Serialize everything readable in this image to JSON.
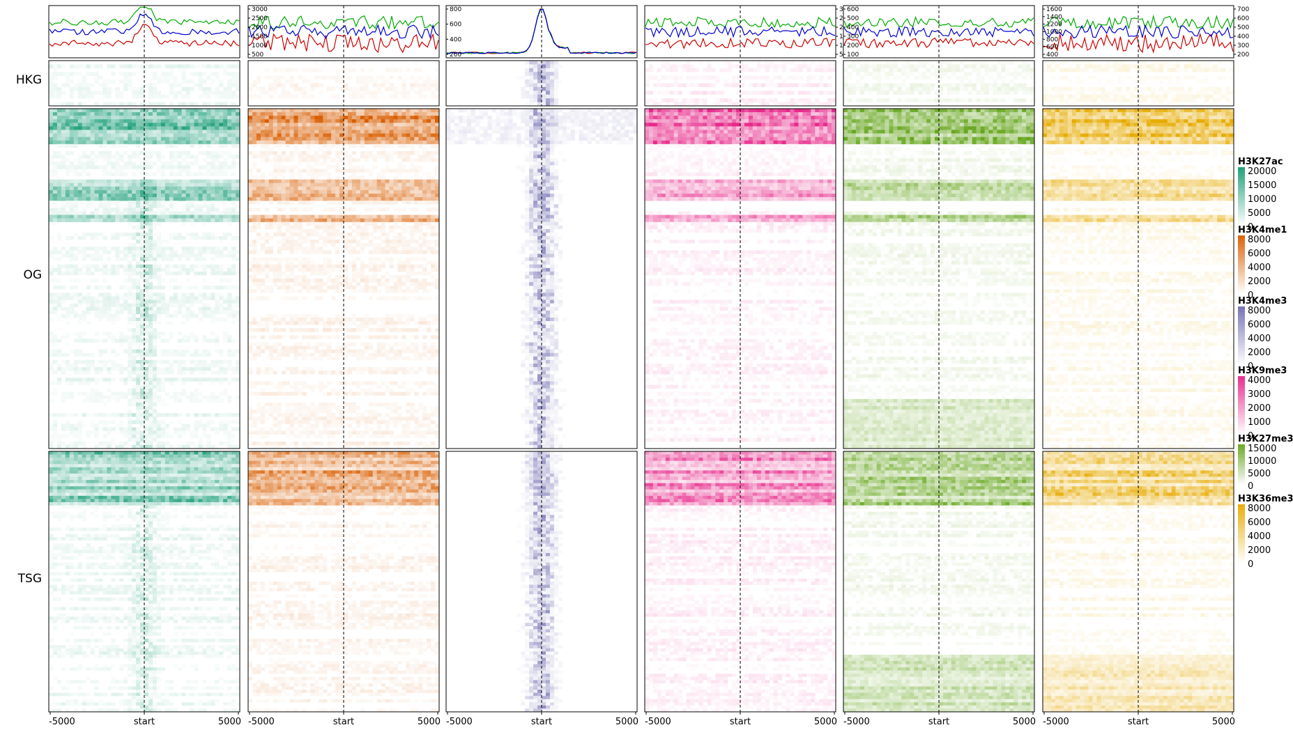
{
  "chart_data": {
    "type": "heatmap",
    "row_groups": [
      "HKG",
      "OG",
      "TSG"
    ],
    "x_tick_labels": [
      "-5000",
      "start",
      "5000"
    ],
    "profile_line_colors": {
      "HKG": "#cc0000",
      "OG": "#00aa00",
      "TSG": "#0000cc"
    },
    "marks": [
      {
        "name": "H3K27ac",
        "color": "#1b9e77",
        "legend_ticks": [
          "20000",
          "15000",
          "10000",
          "5000",
          "0"
        ],
        "profile_ticks": [],
        "profile_ticks_side": "right",
        "profile_shape": "peak-broad"
      },
      {
        "name": "H3K4me1",
        "color": "#d95f02",
        "legend_ticks": [
          "8000",
          "6000",
          "4000",
          "2000",
          "0"
        ],
        "profile_ticks": [
          "3000",
          "2500",
          "2000",
          "1500",
          "1000",
          "500"
        ],
        "profile_ticks_side": "left",
        "profile_shape": "noisy"
      },
      {
        "name": "H3K4me3",
        "color": "#7570b3",
        "legend_ticks": [
          "8000",
          "6000",
          "4000",
          "2000",
          "0"
        ],
        "profile_ticks": [
          "800",
          "600",
          "400",
          "200"
        ],
        "profile_ticks_side": "left",
        "profile_shape": "peak-sharp"
      },
      {
        "name": "H3K9me3",
        "color": "#e7298a",
        "legend_ticks": [
          "4000",
          "3000",
          "2000",
          "1000",
          "0"
        ],
        "profile_ticks": [
          "3000",
          "2500",
          "2000",
          "1500",
          "1000",
          "500"
        ],
        "profile_ticks_side": "right",
        "profile_shape": "flat-noisy"
      },
      {
        "name": "H3K27me3",
        "color": "#66a61e",
        "legend_ticks": [
          "15000",
          "10000",
          "5000",
          "0"
        ],
        "profile_ticks": [
          "600",
          "500",
          "400",
          "300",
          "200",
          "100"
        ],
        "profile_ticks_side": "left",
        "profile_shape": "flat-noisy"
      },
      {
        "name": "H3K36me3",
        "color": "#e6ab02",
        "legend_ticks": [
          "8000",
          "6000",
          "4000",
          "2000",
          "0"
        ],
        "profile_ticks": [
          "1600",
          "1400",
          "1200",
          "1000",
          "800",
          "600",
          "400"
        ],
        "profile_ticks_side": "left",
        "profile_ticks_right": [
          "700",
          "600",
          "500",
          "400",
          "300",
          "200"
        ],
        "profile_shape": "noisy"
      }
    ]
  }
}
